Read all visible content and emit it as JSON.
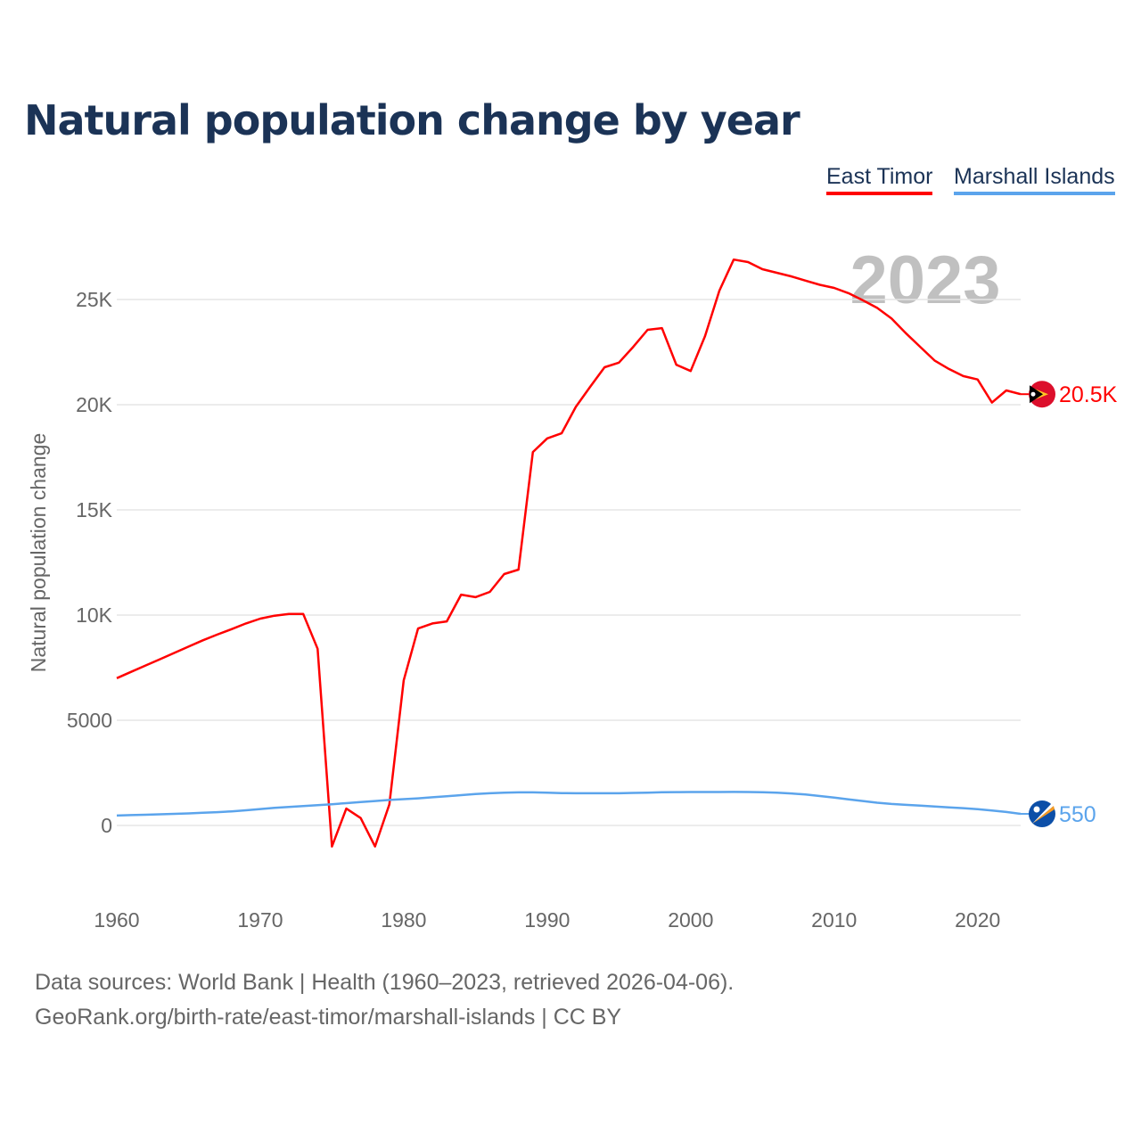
{
  "title": "Natural population change by year",
  "sources": [
    "Data sources: World Bank | Health (1960–2023, retrieved 2026-04-06).",
    "GeoRank.org/birth-rate/east-timor/marshall-islands | CC BY"
  ],
  "chart_data": {
    "type": "line",
    "title": "Natural population change by year",
    "xlabel": "",
    "ylabel": "Natural population change",
    "xlim": [
      1960,
      2023
    ],
    "ylim": [
      -2700,
      28000
    ],
    "year_label": "2023",
    "xticks": [
      "1960",
      "1970",
      "1980",
      "1990",
      "2000",
      "2010",
      "2020"
    ],
    "yticks": [
      {
        "v": 0,
        "label": "0"
      },
      {
        "v": 5000,
        "label": "5000"
      },
      {
        "v": 10000,
        "label": "10K"
      },
      {
        "v": 15000,
        "label": "15K"
      },
      {
        "v": 20000,
        "label": "20K"
      },
      {
        "v": 25000,
        "label": "25K"
      }
    ],
    "legend_position": "top-right",
    "x_start": 1960,
    "series": [
      {
        "name": "East Timor",
        "color": "#ff0000",
        "end_label": "20.5K",
        "flag": "east-timor-flag",
        "values": [
          7000,
          7300,
          7600,
          7900,
          8200,
          8500,
          8800,
          9070,
          9330,
          9600,
          9830,
          9970,
          10050,
          10050,
          8400,
          -1000,
          800,
          350,
          -1000,
          1000,
          6900,
          9360,
          9600,
          9700,
          10970,
          10850,
          11100,
          11950,
          12160,
          17750,
          18400,
          18640,
          19900,
          20850,
          21780,
          22000,
          22750,
          23560,
          23640,
          21900,
          21600,
          23260,
          25420,
          26900,
          26780,
          26440,
          26270,
          26100,
          25900,
          25700,
          25550,
          25300,
          24960,
          24600,
          24100,
          23400,
          22750,
          22100,
          21700,
          21360,
          21200,
          20100,
          20680,
          20500
        ]
      },
      {
        "name": "Marshall Islands",
        "color": "#5ba4ec",
        "end_label": "550",
        "flag": "marshall-islands-flag",
        "values": [
          470,
          490,
          510,
          530,
          550,
          570,
          600,
          630,
          670,
          720,
          780,
          840,
          880,
          920,
          960,
          1010,
          1060,
          1110,
          1160,
          1210,
          1250,
          1290,
          1340,
          1390,
          1440,
          1490,
          1530,
          1555,
          1570,
          1570,
          1555,
          1540,
          1530,
          1530,
          1530,
          1530,
          1545,
          1560,
          1575,
          1585,
          1590,
          1590,
          1590,
          1595,
          1590,
          1580,
          1560,
          1520,
          1470,
          1400,
          1320,
          1240,
          1160,
          1080,
          1020,
          980,
          940,
          900,
          860,
          820,
          770,
          710,
          640,
          550
        ]
      }
    ]
  }
}
